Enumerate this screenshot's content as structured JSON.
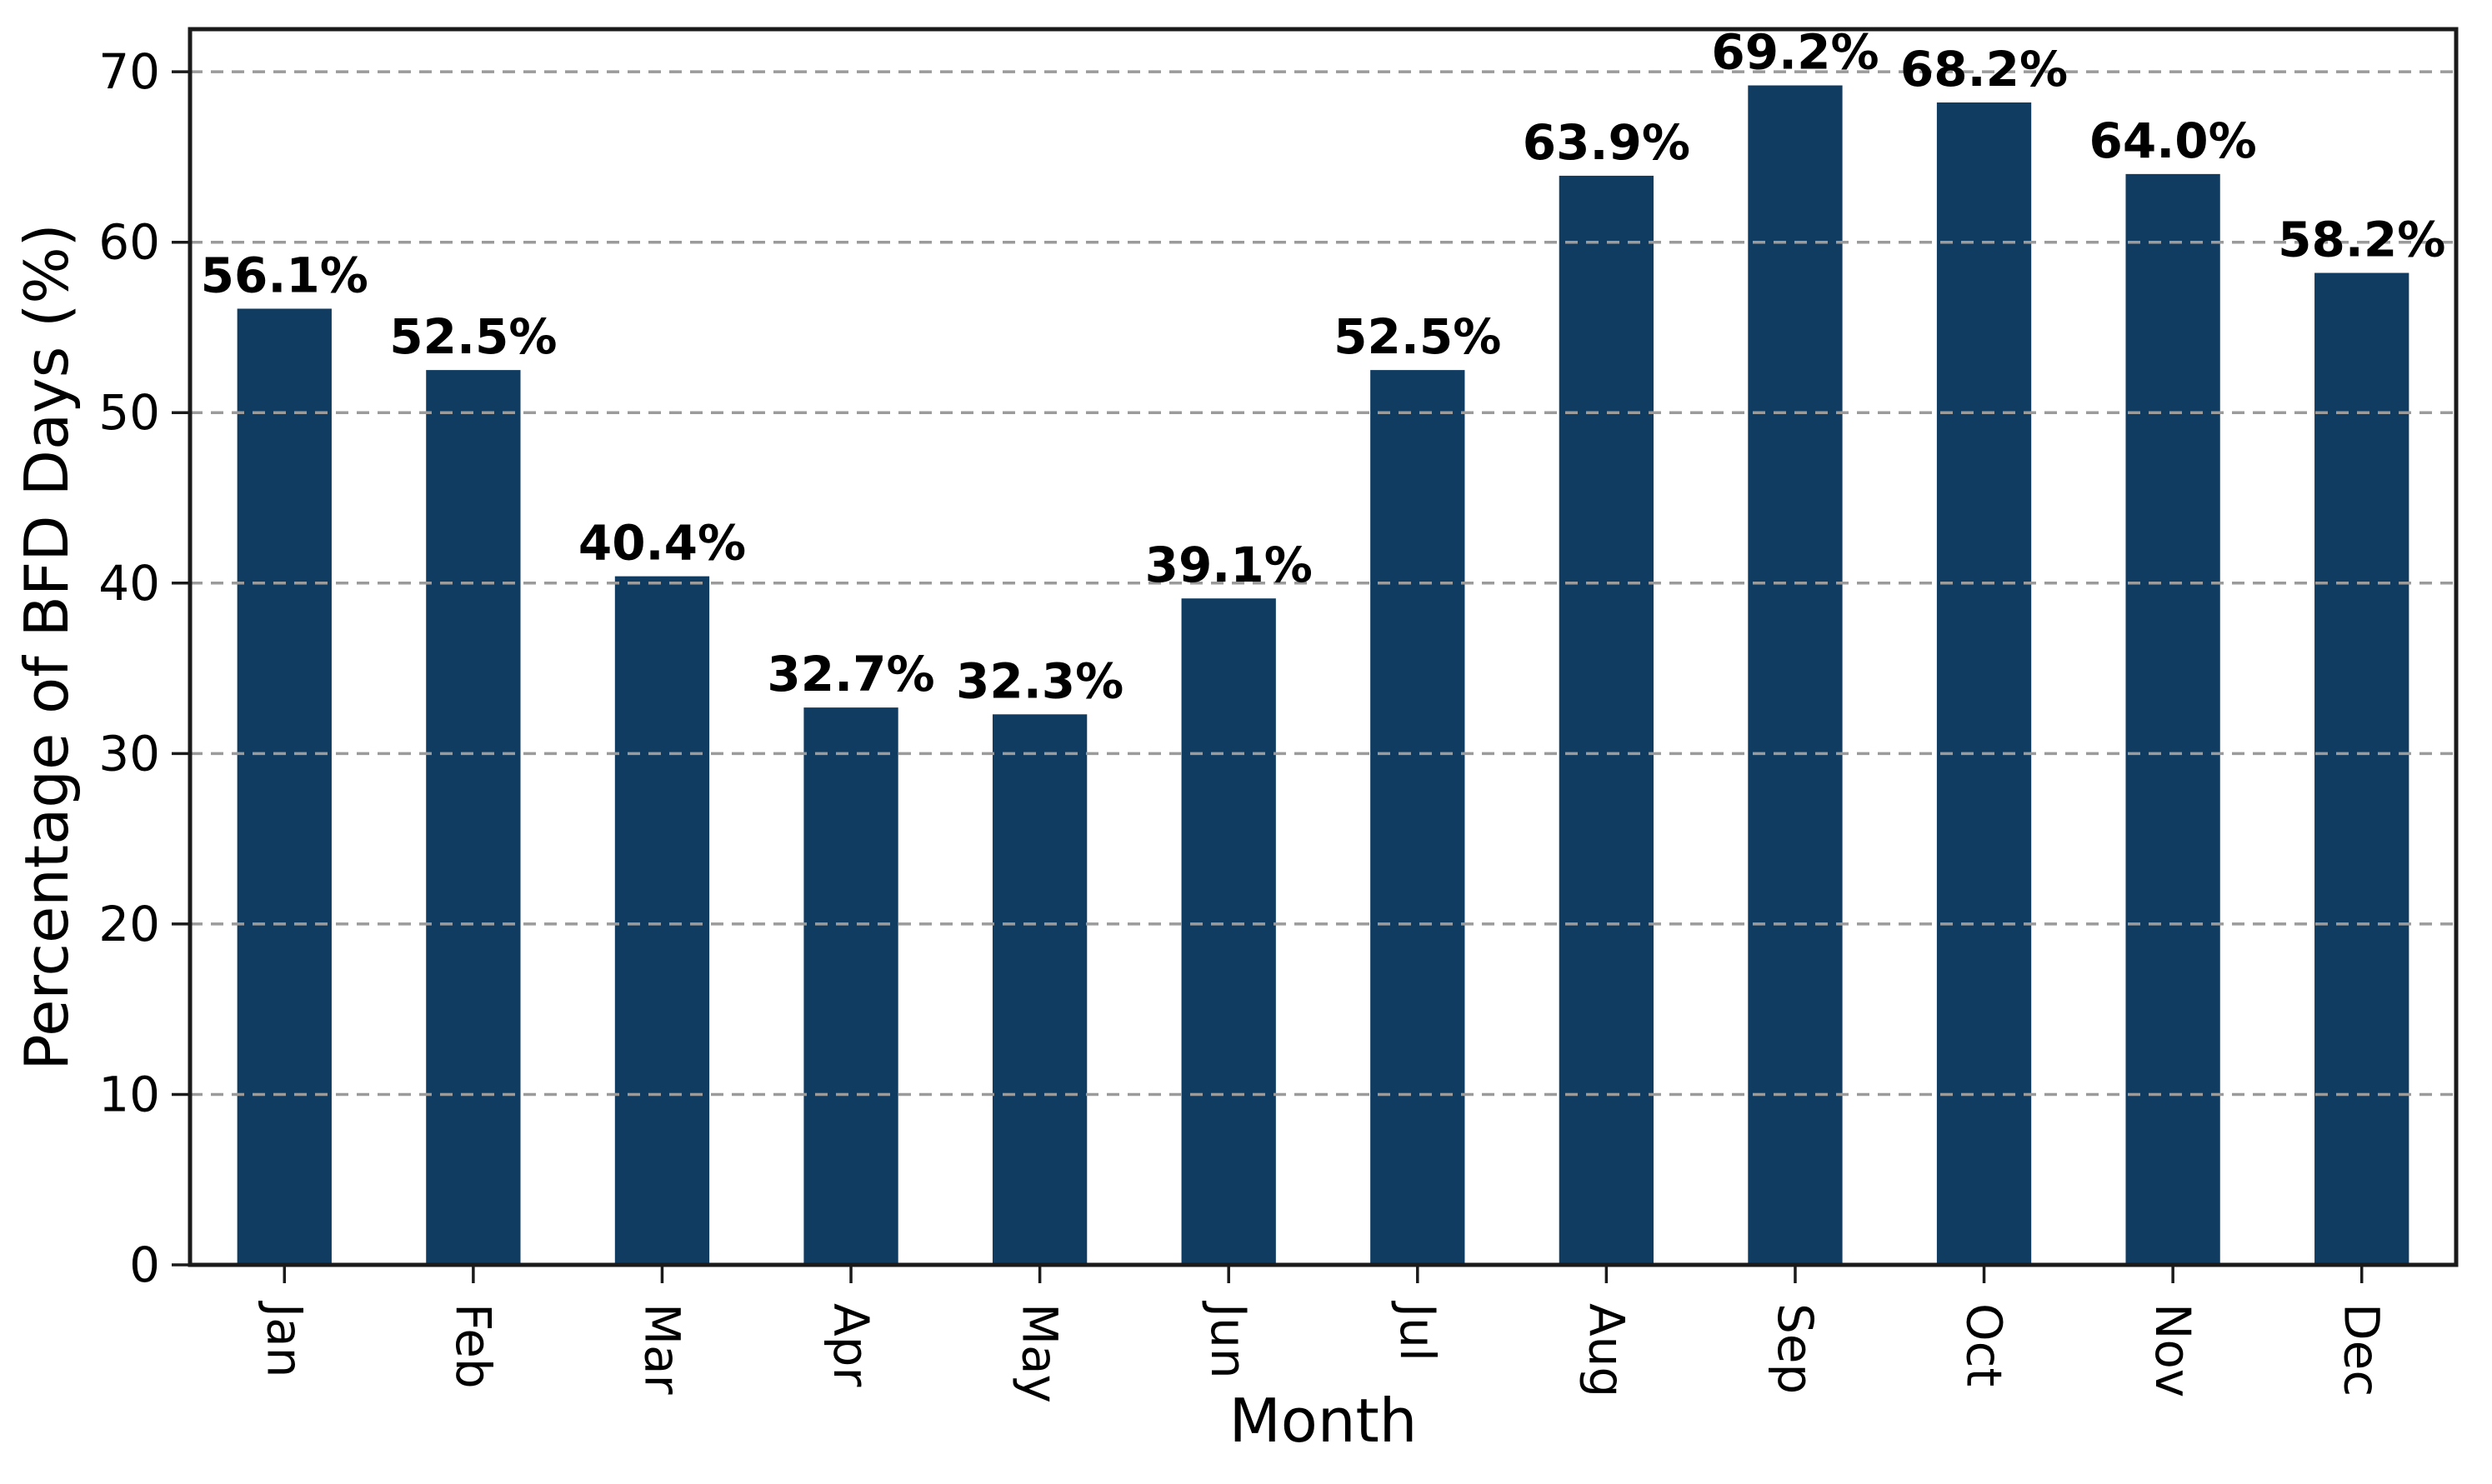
{
  "chart_data": {
    "type": "bar",
    "title": "",
    "xlabel": "Month",
    "ylabel": "Percentage of BFD Days (%)",
    "categories": [
      "Jan",
      "Feb",
      "Mar",
      "Apr",
      "May",
      "Jun",
      "Jul",
      "Aug",
      "Sep",
      "Oct",
      "Nov",
      "Dec"
    ],
    "values": [
      56.1,
      52.5,
      40.4,
      32.7,
      32.3,
      39.1,
      52.5,
      63.9,
      69.2,
      68.2,
      64.0,
      58.2
    ],
    "value_labels": [
      "56.1%",
      "52.5%",
      "40.4%",
      "32.7%",
      "32.3%",
      "39.1%",
      "52.5%",
      "63.9%",
      "69.2%",
      "68.2%",
      "64.0%",
      "58.2%"
    ],
    "yticks": [
      0,
      10,
      20,
      30,
      40,
      50,
      60,
      70
    ],
    "ylim": [
      0,
      72.5
    ],
    "grid": "horizontal-dashed-over-bars",
    "legend_position": "none",
    "colors": {
      "bar": "#113c62",
      "grid": "#9b9b9b",
      "spine": "#1a1a1a",
      "text": "#000000",
      "background": "#ffffff"
    }
  }
}
